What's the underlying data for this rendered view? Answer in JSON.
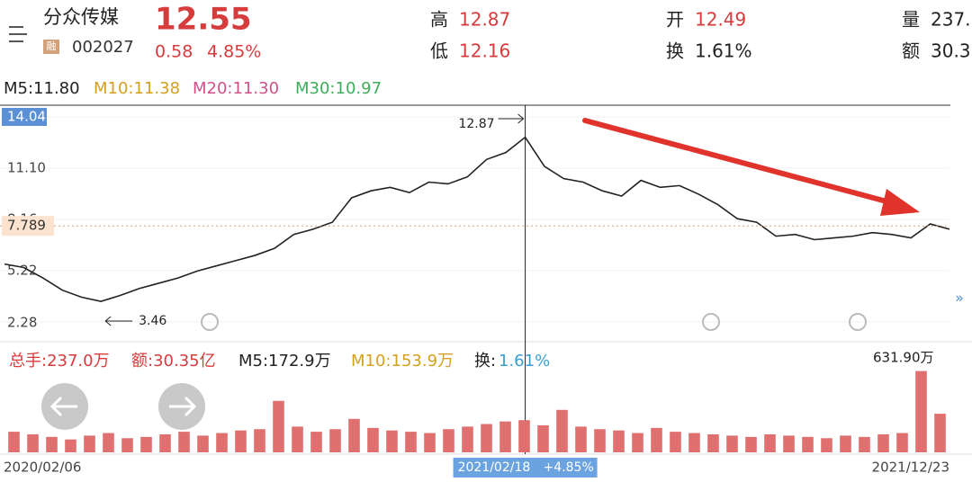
{
  "header": {
    "name": "分众传媒",
    "tag": "融",
    "code": "002027",
    "price": "12.55",
    "change": "0.58",
    "change_pct": "4.85%",
    "high_label": "高",
    "high": "12.87",
    "low_label": "低",
    "low": "12.16",
    "open_label": "开",
    "open": "12.49",
    "turnover_label": "换",
    "turnover": "1.61%",
    "volume_label": "量",
    "volume": "237.",
    "amount_label": "额",
    "amount": "30.3"
  },
  "ma": [
    "M5:11.80",
    "M10:11.38",
    "M20:11.30",
    "M30:10.97"
  ],
  "volume_info": [
    "总手:237.0万",
    "额:30.35亿",
    "M5:172.9万",
    "M10:153.9万",
    "换:",
    "1.61%"
  ],
  "chart_data": [
    {
      "type": "line",
      "color": "#222222",
      "ylim": [
        2.28,
        14.04
      ],
      "yticks": [
        14.04,
        {
          "value": 11.1,
          "label": "11.10"
        },
        8.16,
        5.22,
        2.28
      ],
      "values": [
        5.6,
        5.4,
        4.8,
        4.1,
        3.7,
        3.46,
        3.8,
        4.2,
        4.5,
        4.8,
        5.2,
        5.5,
        5.8,
        6.1,
        6.5,
        7.3,
        7.6,
        8.0,
        9.4,
        9.8,
        10.0,
        9.7,
        10.3,
        10.2,
        10.6,
        11.6,
        12.0,
        12.87,
        11.2,
        10.5,
        10.3,
        9.8,
        9.5,
        10.4,
        10.0,
        10.1,
        9.6,
        9.0,
        8.2,
        8.0,
        7.2,
        7.3,
        7.0,
        7.1,
        7.2,
        7.4,
        7.3,
        7.1,
        7.9,
        7.6
      ],
      "current": 7.789,
      "current_label": "7.789",
      "low_annotation": "3.46",
      "high_annotation": "12.87",
      "x_start": "2020/02/06",
      "x_selected": "2021/02/18",
      "x_selected_change": "+4.85%",
      "x_end": "2021/12/23"
    },
    {
      "type": "bar",
      "color": "#e07070",
      "ylim": [
        0,
        650
      ],
      "max_label": "631.90万",
      "values": [
        160,
        140,
        120,
        100,
        130,
        150,
        110,
        120,
        140,
        160,
        130,
        150,
        170,
        180,
        400,
        200,
        160,
        180,
        260,
        190,
        170,
        160,
        150,
        180,
        200,
        220,
        240,
        250,
        210,
        330,
        200,
        180,
        170,
        150,
        190,
        160,
        150,
        140,
        130,
        120,
        140,
        130,
        120,
        110,
        130,
        120,
        140,
        150,
        631.9,
        300
      ]
    }
  ]
}
